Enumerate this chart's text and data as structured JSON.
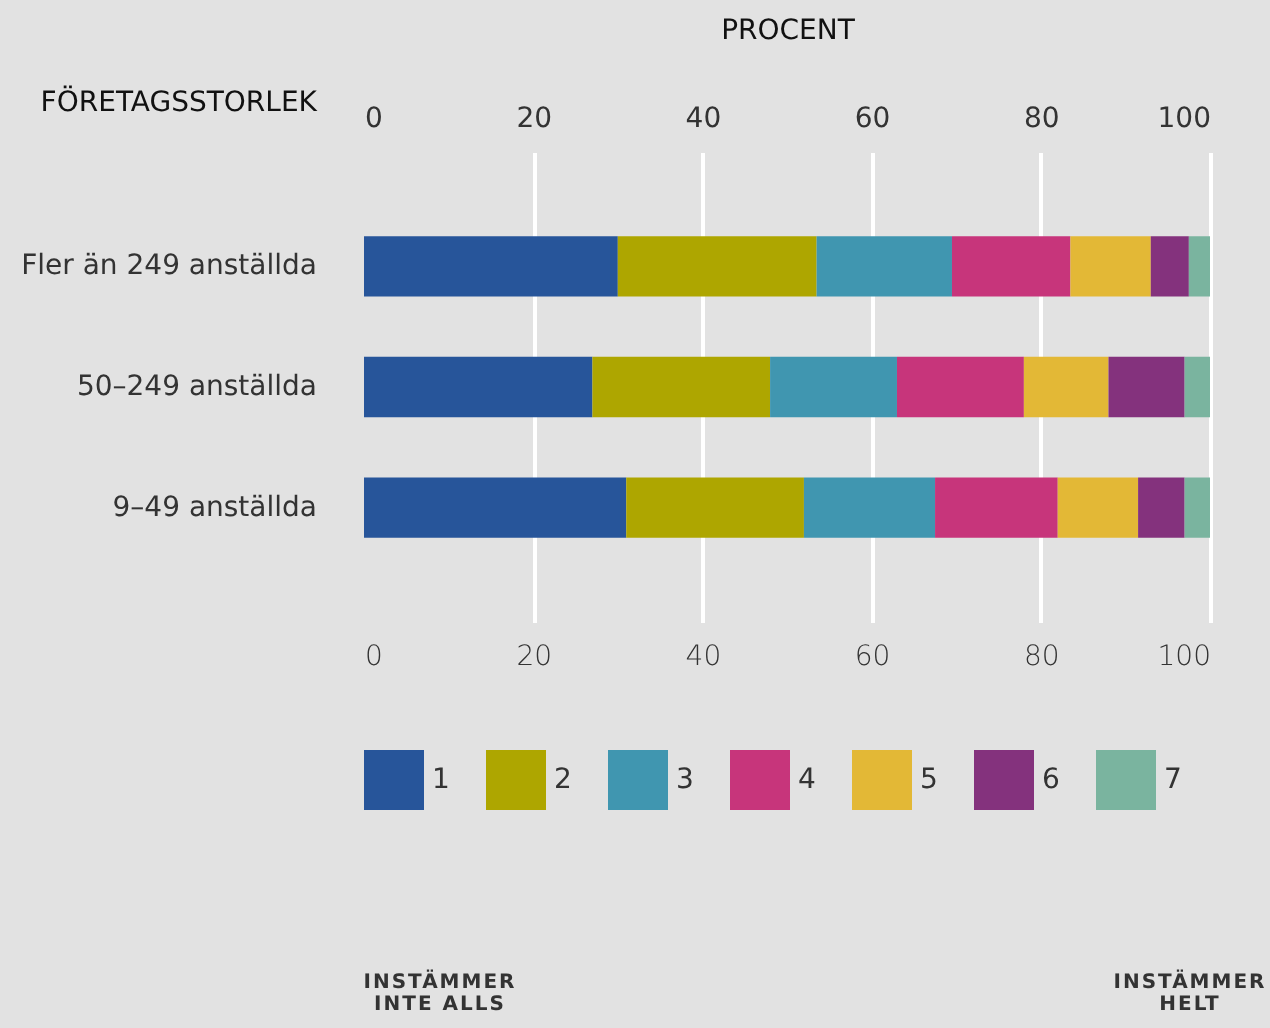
{
  "chart_data": {
    "type": "bar",
    "orientation": "horizontal",
    "stacked": true,
    "x2label": "PROCENT",
    "ylabel": "FÖRETAGSSTORLEK",
    "categories": [
      "Fler än 249 anställda",
      "50–249 anställda",
      "9–49 anställda"
    ],
    "series": [
      {
        "name": "1",
        "color": "#27559a",
        "values": [
          30,
          27,
          31
        ]
      },
      {
        "name": "2",
        "color": "#aea600",
        "values": [
          23.5,
          21,
          21
        ]
      },
      {
        "name": "3",
        "color": "#4096b0",
        "values": [
          16,
          15,
          15.5
        ]
      },
      {
        "name": "4",
        "color": "#c7357b",
        "values": [
          14,
          15,
          14.5
        ]
      },
      {
        "name": "5",
        "color": "#e3b836",
        "values": [
          9.5,
          10,
          9.5
        ]
      },
      {
        "name": "6",
        "color": "#84327d",
        "values": [
          4.5,
          9,
          5.5
        ]
      },
      {
        "name": "7",
        "color": "#7ab49f",
        "values": [
          2.5,
          3,
          3
        ]
      }
    ],
    "xlim": [
      0,
      100
    ],
    "xticks": [
      0,
      20,
      40,
      60,
      80,
      100
    ],
    "x2lim": [
      0,
      100
    ],
    "x2ticks": [
      0,
      20,
      40,
      60,
      80,
      100
    ],
    "grid": "x",
    "legend": "bottom",
    "annotations": [
      "INSTÄMMER INTE ALLS",
      "INSTÄMMER HELT"
    ]
  }
}
